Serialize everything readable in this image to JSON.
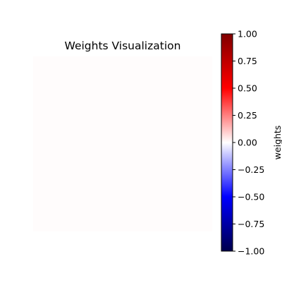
{
  "chart_data": {
    "type": "heatmap",
    "title": "Weights Visualization",
    "xlabel": "",
    "ylabel": "",
    "axes_visible": false,
    "values": [
      [
        0.005
      ]
    ],
    "vlim": [
      -1.0,
      1.0
    ],
    "colormap": "seismic",
    "colormap_stops": [
      "#00004c",
      "#0000ff",
      "#ffffff",
      "#ff0000",
      "#800000"
    ],
    "colorbar": {
      "label": "weights",
      "ticks": [
        1.0,
        0.75,
        0.5,
        0.25,
        0.0,
        -0.25,
        -0.5,
        -0.75,
        -1.0
      ],
      "tick_labels": [
        "1.00",
        "0.75",
        "0.50",
        "0.25",
        "0.00",
        "−0.25",
        "−0.50",
        "−0.75",
        "−1.00"
      ]
    }
  }
}
